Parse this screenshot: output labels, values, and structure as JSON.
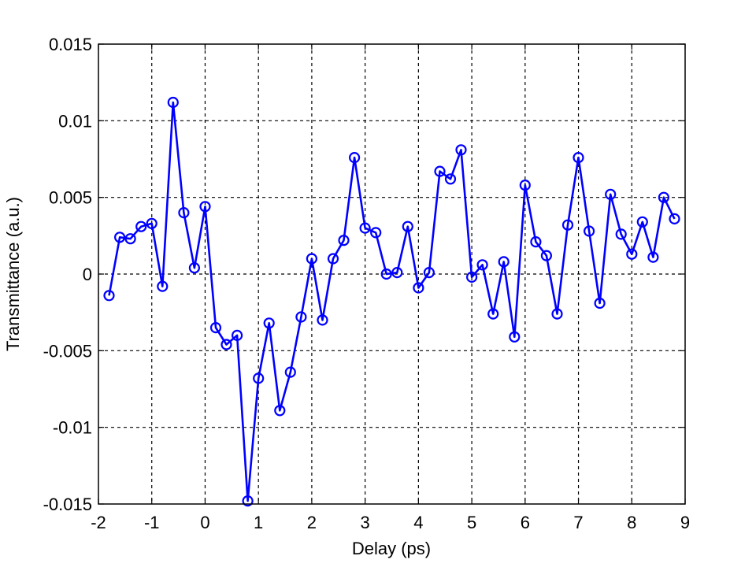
{
  "chart_data": {
    "type": "line",
    "title": "",
    "xlabel": "Delay (ps)",
    "ylabel": "Transmittance (a.u.)",
    "xlim": [
      -2,
      9
    ],
    "ylim": [
      -0.015,
      0.015
    ],
    "x_ticks": [
      -2,
      -1,
      0,
      1,
      2,
      3,
      4,
      5,
      6,
      7,
      8,
      9
    ],
    "x_tick_labels": [
      "-2",
      "-1",
      "0",
      "1",
      "2",
      "3",
      "4",
      "5",
      "6",
      "7",
      "8",
      "9"
    ],
    "y_ticks": [
      0.015,
      0.01,
      0.005,
      0,
      -0.005,
      -0.01,
      -0.015
    ],
    "y_tick_labels": [
      "0.015",
      "0.01",
      "0.005",
      "0",
      "-0.005",
      "-0.01",
      "-0.015"
    ],
    "grid": true,
    "grid_style": "dashed",
    "series": [
      {
        "color": "#0000ff",
        "marker": "circle",
        "x": [
          -1.8,
          -1.6,
          -1.4,
          -1.2,
          -1.0,
          -0.8,
          -0.6,
          -0.4,
          -0.2,
          0.0,
          0.2,
          0.4,
          0.6,
          0.8,
          1.0,
          1.2,
          1.4,
          1.6,
          1.8,
          2.0,
          2.2,
          2.4,
          2.6,
          2.8,
          3.0,
          3.2,
          3.4,
          3.6,
          3.8,
          4.0,
          4.2,
          4.4,
          4.6,
          4.8,
          5.0,
          5.2,
          5.4,
          5.6,
          5.8,
          6.0,
          6.2,
          6.4,
          6.6,
          6.8,
          7.0,
          7.2,
          7.4,
          7.6,
          7.8,
          8.0,
          8.2,
          8.4,
          8.6,
          8.8
        ],
        "y": [
          -0.0014,
          0.0024,
          0.0023,
          0.0031,
          0.0033,
          -0.0008,
          0.0112,
          0.004,
          0.0004,
          0.0044,
          -0.0035,
          -0.0046,
          -0.004,
          -0.0148,
          -0.0068,
          -0.0032,
          -0.0089,
          -0.0064,
          -0.0028,
          0.001,
          -0.003,
          0.001,
          0.0022,
          0.0076,
          0.003,
          0.0027,
          0.0,
          0.0001,
          0.0031,
          -0.0009,
          0.0001,
          0.0067,
          0.0062,
          0.0081,
          -0.0002,
          0.0006,
          -0.0026,
          0.0008,
          -0.0041,
          0.0058,
          0.0021,
          0.0012,
          -0.0026,
          0.0032,
          0.0076,
          0.0028,
          -0.0019,
          0.0052,
          0.0026,
          0.0013,
          0.0034,
          0.0011,
          0.005,
          0.0036
        ]
      }
    ]
  }
}
